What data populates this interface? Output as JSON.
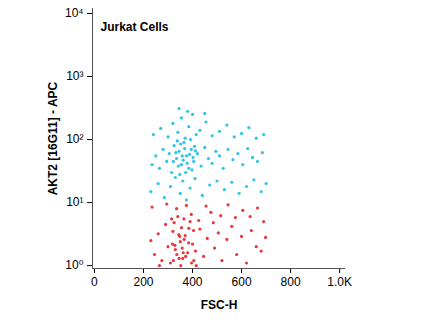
{
  "chart_data": {
    "type": "scatter",
    "title": "Jurkat Cells",
    "x_label": "FSC-H",
    "y_label": "AKT2 [16G11] - APC",
    "log": "y",
    "xlim": [
      -8,
      1024
    ],
    "ylim": [
      0.9,
      12000
    ],
    "xticks": [
      0,
      200,
      400,
      600,
      800,
      {
        "value": 1000,
        "label": "1.0K"
      }
    ],
    "yticks": [
      {
        "value": 1,
        "label": "10⁰"
      },
      {
        "value": 10,
        "label": "10¹"
      },
      {
        "value": 100,
        "label": "10²"
      },
      {
        "value": 1000,
        "label": "10³"
      },
      {
        "value": 10000,
        "label": "10⁴"
      }
    ],
    "grid": false,
    "marker": "dot",
    "series": [
      {
        "color": "#e8383c",
        "x": [
          230,
          245,
          260,
          275,
          290,
          300,
          310,
          320,
          330,
          340,
          350,
          360,
          370,
          380,
          390,
          400,
          415,
          430,
          445,
          460,
          475,
          490,
          505,
          520,
          540,
          560,
          580,
          600,
          620,
          640,
          660,
          680,
          698,
          235,
          265,
          295,
          315,
          335,
          355,
          375,
          395,
          425,
          455,
          485,
          515,
          545,
          575,
          605,
          635,
          665,
          690,
          322,
          328,
          336,
          344,
          352,
          358,
          366,
          372,
          384,
          396,
          404,
          412,
          325,
          345,
          365,
          385,
          405,
          348,
          318,
          362
        ],
        "y": [
          2.5,
          1.5,
          3.2,
          1.2,
          4.5,
          2.0,
          1.1,
          3.5,
          1.8,
          6.0,
          2.4,
          1.3,
          3.0,
          1.6,
          5.0,
          2.2,
          1.0,
          3.8,
          1.4,
          2.7,
          7.0,
          1.9,
          3.3,
          1.2,
          2.6,
          4.2,
          1.5,
          2.9,
          1.1,
          3.6,
          2.0,
          1.7,
          2.8,
          8.5,
          1.0,
          9.5,
          5.5,
          8.0,
          4.0,
          9.0,
          6.5,
          5.2,
          8.8,
          4.8,
          6.2,
          9.2,
          5.8,
          7.5,
          6.0,
          8.2,
          5.0,
          1.2,
          2.1,
          1.5,
          3.1,
          1.0,
          1.9,
          2.6,
          1.4,
          2.3,
          1.1,
          3.6,
          1.7,
          4.8,
          1.3,
          5.5,
          3.9,
          1.2,
          2.9,
          2.2,
          1.6
        ]
      },
      {
        "color": "#2fc4e8",
        "x": [
          235,
          250,
          265,
          280,
          295,
          305,
          315,
          325,
          335,
          345,
          355,
          365,
          375,
          385,
          395,
          405,
          420,
          435,
          450,
          465,
          480,
          495,
          510,
          525,
          545,
          565,
          585,
          605,
          625,
          645,
          665,
          685,
          240,
          270,
          300,
          320,
          340,
          355,
          370,
          385,
          400,
          415,
          430,
          455,
          480,
          510,
          540,
          570,
          600,
          630,
          660,
          690,
          345,
          380,
          450,
          230,
          260,
          285,
          310,
          330,
          350,
          360,
          375,
          390,
          410,
          440,
          470,
          500,
          530,
          560,
          590,
          620,
          650,
          680,
          700,
          322,
          332,
          342,
          352,
          358,
          362,
          368,
          378,
          388,
          398,
          408,
          338,
          348,
          372,
          392,
          402,
          412
        ],
        "y": [
          40,
          55,
          35,
          70,
          45,
          60,
          30,
          80,
          50,
          65,
          40,
          90,
          55,
          35,
          70,
          45,
          60,
          38,
          75,
          50,
          42,
          65,
          55,
          35,
          70,
          48,
          60,
          40,
          72,
          52,
          45,
          62,
          120,
          150,
          110,
          180,
          130,
          220,
          105,
          160,
          250,
          120,
          140,
          190,
          115,
          135,
          170,
          110,
          125,
          155,
          105,
          120,
          310,
          280,
          260,
          15,
          20,
          12,
          18,
          25,
          14,
          22,
          11,
          17,
          24,
          13,
          19,
          22,
          16,
          21,
          14,
          18,
          23,
          15,
          20,
          45,
          62,
          38,
          85,
          55,
          47,
          72,
          42,
          58,
          33,
          78,
          95,
          28,
          30,
          100,
          52,
          66
        ]
      }
    ]
  }
}
